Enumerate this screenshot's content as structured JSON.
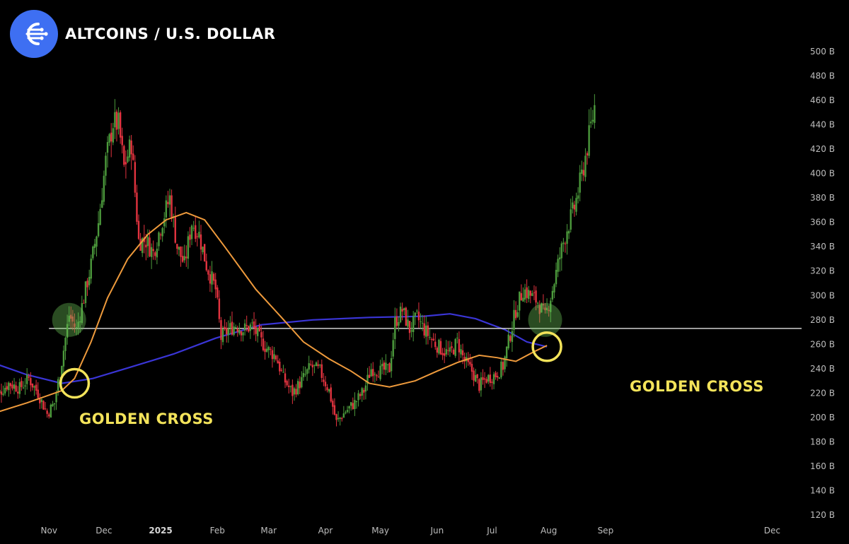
{
  "header": {
    "title": "ALTCOINS / U.S. DOLLAR",
    "logo_icon": "stream-lines-logo",
    "logo_color": "#3e6ff2"
  },
  "chart_data": {
    "type": "candlestick",
    "title": "ALTCOINS / U.S. DOLLAR",
    "y_unit": "B",
    "ylim": [
      120,
      500
    ],
    "y_ticks": [
      "500 B",
      "480 B",
      "460 B",
      "440 B",
      "420 B",
      "400 B",
      "380 B",
      "360 B",
      "340 B",
      "320 B",
      "300 B",
      "280 B",
      "260 B",
      "240 B",
      "220 B",
      "200 B",
      "180 B",
      "160 B",
      "140 B",
      "120 B"
    ],
    "y_tick_values": [
      500,
      480,
      460,
      440,
      420,
      400,
      380,
      360,
      340,
      320,
      300,
      280,
      260,
      240,
      220,
      200,
      180,
      160,
      140,
      120
    ],
    "x_ticks": [
      "Nov",
      "Dec",
      "2025",
      "Feb",
      "Mar",
      "Apr",
      "May",
      "Jun",
      "Jul",
      "Aug",
      "Sep",
      "Dec"
    ],
    "x_tick_dates": [
      "2024-11-01",
      "2024-12-01",
      "2025-01-01",
      "2025-02-01",
      "2025-03-01",
      "2025-04-01",
      "2025-05-01",
      "2025-06-01",
      "2025-07-01",
      "2025-08-01",
      "2025-09-01",
      "2025-12-01"
    ],
    "x_range": [
      "2024-10-01",
      "2025-12-31"
    ],
    "colors": {
      "up": "#4c9a3c",
      "down": "#e2333f",
      "ma_short": "#ee9a3c",
      "ma_long": "#3a35d6",
      "level": "#cfcfcf",
      "highlight": "#f3e35a"
    },
    "price_path": [
      [
        "2024-10-01",
        215
      ],
      [
        "2024-10-10",
        228
      ],
      [
        "2024-10-16",
        224
      ],
      [
        "2024-10-21",
        232
      ],
      [
        "2024-10-26",
        220
      ],
      [
        "2024-10-31",
        203
      ],
      [
        "2024-11-04",
        212
      ],
      [
        "2024-11-08",
        246
      ],
      [
        "2024-11-12",
        284
      ],
      [
        "2024-11-16",
        272
      ],
      [
        "2024-11-20",
        298
      ],
      [
        "2024-11-24",
        325
      ],
      [
        "2024-11-28",
        360
      ],
      [
        "2024-12-02",
        410
      ],
      [
        "2024-12-06",
        442
      ],
      [
        "2024-12-09",
        440
      ],
      [
        "2024-12-12",
        405
      ],
      [
        "2024-12-16",
        425
      ],
      [
        "2024-12-20",
        345
      ],
      [
        "2024-12-24",
        345
      ],
      [
        "2024-12-28",
        335
      ],
      [
        "2025-01-02",
        362
      ],
      [
        "2025-01-06",
        380
      ],
      [
        "2025-01-10",
        340
      ],
      [
        "2025-01-14",
        325
      ],
      [
        "2025-01-18",
        360
      ],
      [
        "2025-01-22",
        350
      ],
      [
        "2025-01-26",
        325
      ],
      [
        "2025-01-31",
        305
      ],
      [
        "2025-02-03",
        265
      ],
      [
        "2025-02-07",
        272
      ],
      [
        "2025-02-11",
        276
      ],
      [
        "2025-02-15",
        272
      ],
      [
        "2025-02-20",
        275
      ],
      [
        "2025-02-25",
        262
      ],
      [
        "2025-03-01",
        255
      ],
      [
        "2025-03-05",
        250
      ],
      [
        "2025-03-09",
        232
      ],
      [
        "2025-03-14",
        220
      ],
      [
        "2025-03-19",
        230
      ],
      [
        "2025-03-24",
        242
      ],
      [
        "2025-03-29",
        238
      ],
      [
        "2025-04-03",
        222
      ],
      [
        "2025-04-07",
        196
      ],
      [
        "2025-04-12",
        205
      ],
      [
        "2025-04-17",
        212
      ],
      [
        "2025-04-22",
        222
      ],
      [
        "2025-04-26",
        240
      ],
      [
        "2025-05-01",
        238
      ],
      [
        "2025-05-06",
        240
      ],
      [
        "2025-05-09",
        278
      ],
      [
        "2025-05-13",
        288
      ],
      [
        "2025-05-17",
        272
      ],
      [
        "2025-05-21",
        282
      ],
      [
        "2025-05-25",
        272
      ],
      [
        "2025-05-30",
        262
      ],
      [
        "2025-06-04",
        255
      ],
      [
        "2025-06-08",
        252
      ],
      [
        "2025-06-12",
        262
      ],
      [
        "2025-06-16",
        246
      ],
      [
        "2025-06-20",
        238
      ],
      [
        "2025-06-24",
        226
      ],
      [
        "2025-06-28",
        232
      ],
      [
        "2025-07-03",
        235
      ],
      [
        "2025-07-07",
        242
      ],
      [
        "2025-07-10",
        262
      ],
      [
        "2025-07-14",
        288
      ],
      [
        "2025-07-18",
        305
      ],
      [
        "2025-07-22",
        300
      ],
      [
        "2025-07-26",
        295
      ],
      [
        "2025-07-30",
        282
      ],
      [
        "2025-08-03",
        305
      ],
      [
        "2025-08-07",
        332
      ],
      [
        "2025-08-11",
        355
      ],
      [
        "2025-08-15",
        372
      ],
      [
        "2025-08-19",
        398
      ],
      [
        "2025-08-23",
        430
      ],
      [
        "2025-08-26",
        455
      ]
    ],
    "ma_short": [
      [
        "2024-10-01",
        203
      ],
      [
        "2024-10-20",
        212
      ],
      [
        "2024-11-08",
        222
      ],
      [
        "2024-11-15",
        232
      ],
      [
        "2024-11-24",
        262
      ],
      [
        "2024-12-03",
        298
      ],
      [
        "2024-12-14",
        330
      ],
      [
        "2024-12-25",
        350
      ],
      [
        "2025-01-04",
        362
      ],
      [
        "2025-01-15",
        368
      ],
      [
        "2025-01-25",
        362
      ],
      [
        "2025-02-05",
        340
      ],
      [
        "2025-02-22",
        305
      ],
      [
        "2025-03-08",
        282
      ],
      [
        "2025-03-20",
        262
      ],
      [
        "2025-04-03",
        248
      ],
      [
        "2025-04-15",
        238
      ],
      [
        "2025-04-25",
        228
      ],
      [
        "2025-05-06",
        225
      ],
      [
        "2025-05-20",
        230
      ],
      [
        "2025-06-01",
        238
      ],
      [
        "2025-06-12",
        245
      ],
      [
        "2025-06-24",
        251
      ],
      [
        "2025-07-04",
        249
      ],
      [
        "2025-07-14",
        246
      ],
      [
        "2025-07-24",
        254
      ],
      [
        "2025-07-31",
        259
      ]
    ],
    "ma_long": [
      [
        "2024-10-01",
        245
      ],
      [
        "2024-10-20",
        235
      ],
      [
        "2024-11-08",
        228
      ],
      [
        "2024-11-25",
        232
      ],
      [
        "2024-12-15",
        241
      ],
      [
        "2025-01-08",
        252
      ],
      [
        "2025-01-31",
        265
      ],
      [
        "2025-02-25",
        276
      ],
      [
        "2025-03-25",
        280
      ],
      [
        "2025-04-25",
        282
      ],
      [
        "2025-05-25",
        283
      ],
      [
        "2025-06-08",
        285
      ],
      [
        "2025-06-22",
        281
      ],
      [
        "2025-07-08",
        272
      ],
      [
        "2025-07-20",
        262
      ],
      [
        "2025-07-31",
        258
      ]
    ],
    "horizontal_level": 273,
    "annotations": [
      {
        "text": "GOLDEN CROSS",
        "date": "2024-11-15",
        "value": 228
      },
      {
        "text": "GOLDEN CROSS",
        "date": "2025-07-31",
        "value": 258
      }
    ],
    "highlights": [
      {
        "date": "2024-11-12",
        "value": 280
      },
      {
        "date": "2025-07-30",
        "value": 280
      }
    ]
  }
}
